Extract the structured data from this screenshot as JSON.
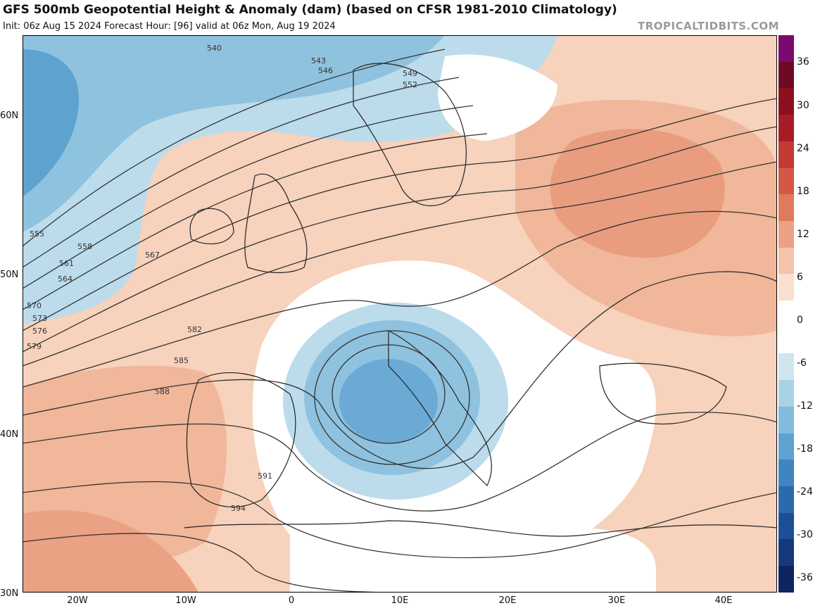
{
  "header": {
    "title": "GFS 500mb Geopotential Height & Anomaly (dam) (based on CFSR 1981-2010 Climatology)",
    "subtitle": "Init: 06z Aug 15 2024   Forecast Hour: [96]   valid at 06z Mon, Aug 19 2024",
    "credit": "TROPICALTIDBITS.COM"
  },
  "axes": {
    "lat_labels": [
      "60N",
      "50N",
      "40N",
      "30N"
    ],
    "lon_labels": [
      "20W",
      "10W",
      "0",
      "10E",
      "20E",
      "30E",
      "40E"
    ]
  },
  "colorbar": {
    "labels": [
      "36",
      "30",
      "24",
      "18",
      "12",
      "6",
      "0",
      "-6",
      "-12",
      "-18",
      "-24",
      "-30",
      "-36"
    ],
    "colors": [
      "#7a0a6e",
      "#6e0a24",
      "#8c1020",
      "#a81c28",
      "#c43a34",
      "#d45846",
      "#e07a5c",
      "#eba184",
      "#f3c3aa",
      "#f9e0d0",
      "#ffffff",
      "#ffffff",
      "#cfe6f0",
      "#a9d2e6",
      "#82bcdc",
      "#5ea3d0",
      "#3f86c0",
      "#2c6aae",
      "#1d4f98",
      "#16397c",
      "#0f2560"
    ]
  },
  "contours": {
    "labels": [
      "540",
      "543",
      "546",
      "549",
      "552",
      "555",
      "558",
      "561",
      "564",
      "567",
      "570",
      "573",
      "576",
      "579",
      "582",
      "585",
      "588",
      "591",
      "594"
    ]
  }
}
